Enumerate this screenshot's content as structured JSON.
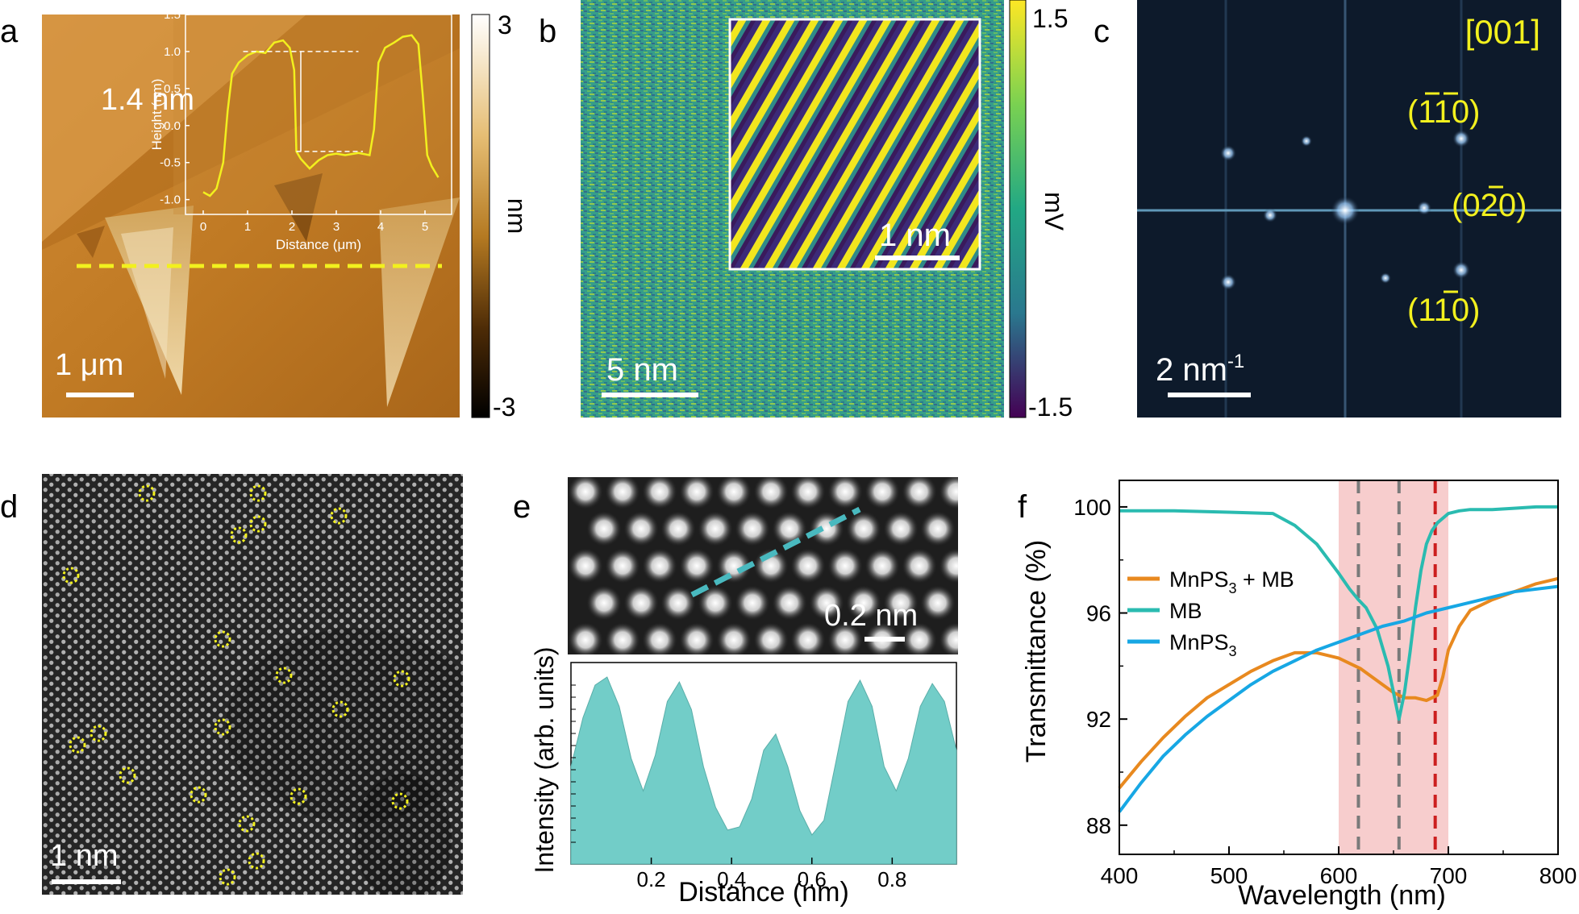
{
  "panel_letters": {
    "a": "a",
    "b": "b",
    "c": "c",
    "d": "d",
    "e": "e",
    "f": "f"
  },
  "colors": {
    "yellow": "#f2f01e",
    "teal": "#2abbb0",
    "blue": "#17a7e4",
    "orange": "#e8891f",
    "shade": "#f6c4c4",
    "red_dash": "#cc1f1f",
    "grey_dash": "#7a7a7a",
    "fill_e": "#72cdc8",
    "dark_navy": "#0d1a2b"
  },
  "panel_a": {
    "scalebar": "1 μm",
    "colorbar": {
      "top": "3",
      "bottom": "-3",
      "unit": "nm"
    },
    "inset": {
      "xlabel": "Distance (μm)",
      "ylabel": "Height (nm)",
      "xticks": [
        "0",
        "1",
        "2",
        "3",
        "4",
        "5"
      ],
      "yticks": [
        "1.5",
        "1.0",
        "0.5",
        "0.0",
        "-0.5",
        "-1.0"
      ],
      "annotation": "1.4 nm",
      "profile": [
        [
          0.0,
          -0.9
        ],
        [
          0.15,
          -0.95
        ],
        [
          0.3,
          -0.85
        ],
        [
          0.45,
          -0.5
        ],
        [
          0.55,
          0.2
        ],
        [
          0.65,
          0.7
        ],
        [
          0.8,
          0.85
        ],
        [
          1.0,
          0.95
        ],
        [
          1.2,
          1.0
        ],
        [
          1.4,
          0.98
        ],
        [
          1.6,
          1.12
        ],
        [
          1.8,
          1.15
        ],
        [
          1.95,
          1.05
        ],
        [
          2.05,
          0.75
        ],
        [
          2.1,
          -0.35
        ],
        [
          2.2,
          -0.45
        ],
        [
          2.4,
          -0.58
        ],
        [
          2.6,
          -0.47
        ],
        [
          2.8,
          -0.4
        ],
        [
          3.0,
          -0.38
        ],
        [
          3.2,
          -0.4
        ],
        [
          3.5,
          -0.37
        ],
        [
          3.75,
          -0.4
        ],
        [
          3.85,
          -0.05
        ],
        [
          3.95,
          0.85
        ],
        [
          4.1,
          1.05
        ],
        [
          4.3,
          1.12
        ],
        [
          4.5,
          1.2
        ],
        [
          4.7,
          1.22
        ],
        [
          4.85,
          1.1
        ],
        [
          4.95,
          0.4
        ],
        [
          5.05,
          -0.4
        ],
        [
          5.15,
          -0.55
        ],
        [
          5.3,
          -0.7
        ]
      ]
    }
  },
  "panel_b": {
    "scalebar": "5 nm",
    "inset_scalebar": "1 nm",
    "colorbar": {
      "top": "1.5",
      "bottom": "-1.5",
      "unit": "mV"
    }
  },
  "panel_c": {
    "zone_axis": "[001]",
    "scalebar_base": "2 nm",
    "scalebar_sup": "-1",
    "spots": {
      "s1": {
        "open": "(",
        "h": "1",
        "k": "1",
        "l": "0)",
        "bar_h": true,
        "bar_k": true
      },
      "s2": {
        "open": "(",
        "h": "0",
        "k": "2",
        "l": "0)",
        "bar_h": false,
        "bar_k": true
      },
      "s3": {
        "open": "(",
        "h": "1",
        "k": "1",
        "l": "0)",
        "bar_h": false,
        "bar_k": true
      }
    }
  },
  "panel_d": {
    "scalebar": "1 nm"
  },
  "panel_e": {
    "scalebar": "0.2 nm",
    "xlabel": "Distance (nm)",
    "ylabel": "Intensity (arb. units)",
    "xticks": [
      "0.2",
      "0.4",
      "0.6",
      "0.8"
    ]
  },
  "chart_data": {
    "type": "line",
    "title": "",
    "xlabel": "Wavelength (nm)",
    "ylabel": "Transmittance (%)",
    "xlim": [
      400,
      800
    ],
    "ylim": [
      86.9,
      101.0
    ],
    "xticks": [
      "400",
      "500",
      "600",
      "700",
      "800"
    ],
    "yticks": [
      "88",
      "92",
      "96",
      "100"
    ],
    "shaded_region": [
      600,
      700
    ],
    "dashed_lines": [
      {
        "x": 618,
        "color": "grey"
      },
      {
        "x": 655,
        "color": "grey"
      },
      {
        "x": 688,
        "color": "red"
      }
    ],
    "legend": [
      {
        "label_main": "MnPS",
        "label_sub": "3",
        "label_tail": " + MB",
        "color": "#e8891f"
      },
      {
        "label_main": "MB",
        "label_sub": "",
        "label_tail": "",
        "color": "#2abbb0"
      },
      {
        "label_main": "MnPS",
        "label_sub": "3",
        "label_tail": "",
        "color": "#17a7e4"
      }
    ],
    "series": [
      {
        "name": "MnPS3 + MB",
        "color": "#e8891f",
        "x": [
          400,
          420,
          440,
          460,
          480,
          500,
          520,
          540,
          560,
          570,
          580,
          590,
          600,
          610,
          620,
          630,
          640,
          650,
          660,
          670,
          680,
          690,
          695,
          700,
          710,
          720,
          740,
          760,
          780,
          800
        ],
        "y": [
          89.4,
          90.4,
          91.3,
          92.1,
          92.8,
          93.3,
          93.8,
          94.2,
          94.5,
          94.5,
          94.5,
          94.4,
          94.3,
          94.1,
          93.9,
          93.6,
          93.3,
          93.0,
          92.8,
          92.8,
          92.7,
          92.9,
          93.6,
          94.6,
          95.5,
          96.1,
          96.5,
          96.8,
          97.1,
          97.3
        ]
      },
      {
        "name": "MB",
        "color": "#2abbb0",
        "x": [
          400,
          450,
          500,
          540,
          560,
          580,
          600,
          610,
          618,
          625,
          635,
          645,
          650,
          655,
          660,
          665,
          670,
          675,
          680,
          685,
          690,
          700,
          710,
          720,
          740,
          760,
          780,
          800
        ],
        "y": [
          99.85,
          99.85,
          99.8,
          99.75,
          99.3,
          98.6,
          97.5,
          96.9,
          96.5,
          96.2,
          95.4,
          94.0,
          93.0,
          92.0,
          93.0,
          94.5,
          96.2,
          97.6,
          98.6,
          99.1,
          99.4,
          99.75,
          99.85,
          99.9,
          99.9,
          99.95,
          100.0,
          100.0
        ]
      },
      {
        "name": "MnPS3",
        "color": "#17a7e4",
        "x": [
          400,
          420,
          440,
          460,
          480,
          500,
          520,
          540,
          560,
          580,
          600,
          620,
          640,
          660,
          680,
          700,
          720,
          740,
          760,
          780,
          800
        ],
        "y": [
          88.5,
          89.6,
          90.6,
          91.4,
          92.1,
          92.7,
          93.3,
          93.8,
          94.2,
          94.6,
          94.9,
          95.2,
          95.5,
          95.7,
          96.0,
          96.2,
          96.4,
          96.6,
          96.8,
          96.9,
          97.0
        ]
      }
    ]
  },
  "intensity_profile": {
    "x": [
      0.0,
      0.03,
      0.06,
      0.09,
      0.12,
      0.15,
      0.18,
      0.21,
      0.24,
      0.27,
      0.3,
      0.33,
      0.36,
      0.39,
      0.42,
      0.45,
      0.48,
      0.51,
      0.54,
      0.57,
      0.6,
      0.63,
      0.66,
      0.69,
      0.72,
      0.75,
      0.78,
      0.81,
      0.84,
      0.87,
      0.9,
      0.93,
      0.96
    ],
    "y": [
      0.45,
      0.75,
      0.95,
      1.0,
      0.82,
      0.5,
      0.3,
      0.52,
      0.85,
      0.97,
      0.8,
      0.45,
      0.2,
      0.06,
      0.08,
      0.25,
      0.55,
      0.65,
      0.45,
      0.18,
      0.03,
      0.12,
      0.48,
      0.85,
      0.98,
      0.82,
      0.45,
      0.3,
      0.5,
      0.82,
      0.96,
      0.85,
      0.55
    ]
  }
}
